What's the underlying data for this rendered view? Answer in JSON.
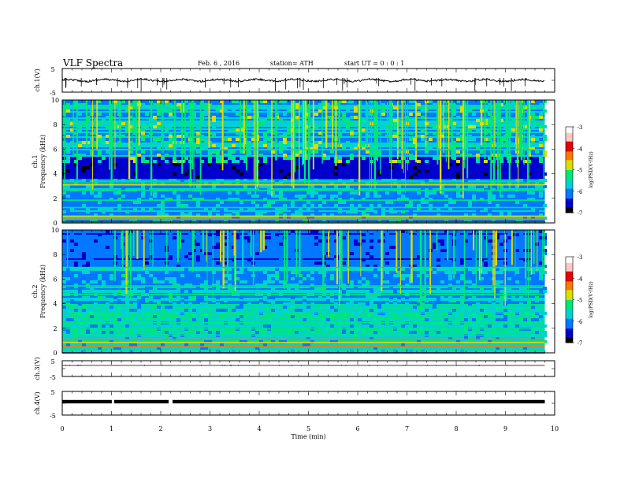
{
  "header": {
    "title": "VLF  Spectra",
    "date": "Feb. 6  , 2016",
    "station": "station= ATH",
    "start": "start  UT =   0 : 0  : 1"
  },
  "chart_data": [
    {
      "type": "line",
      "panel": "ch1-waveform",
      "ylabel": "ch.1(V)",
      "yticks": [
        "5",
        "-5"
      ],
      "ylim": [
        -5,
        5
      ],
      "xlim": [
        0,
        10
      ],
      "level": 0.0,
      "color": "#000000"
    },
    {
      "type": "heatmap",
      "panel": "ch1-spectrogram",
      "ylabel": "Frequency (kHz)",
      "channel_label": "ch.1",
      "ylim": [
        0,
        10
      ],
      "yticks": [
        "0",
        "2",
        "4",
        "6",
        "8",
        "10"
      ],
      "xlim": [
        0,
        9.8
      ],
      "colorbar": {
        "label": "log(PSD(V²/Hz)",
        "range": [
          -7,
          -3
        ],
        "ticks": [
          "-3",
          "-4",
          "-5",
          "-6",
          "-7"
        ]
      }
    },
    {
      "type": "heatmap",
      "panel": "ch2-spectrogram",
      "ylabel": "Frequency (kHz)",
      "channel_label": "ch.2",
      "ylim": [
        0,
        10
      ],
      "yticks": [
        "0",
        "2",
        "4",
        "6",
        "8",
        "10"
      ],
      "xlim": [
        0,
        9.8
      ],
      "colorbar": {
        "label": "log(PSD(V²/Hz)",
        "range": [
          -7,
          -3
        ],
        "ticks": [
          "-3",
          "-4",
          "-5",
          "-6",
          "-7"
        ]
      }
    },
    {
      "type": "line",
      "panel": "ch3-waveform",
      "ylabel": "ch.3(V)",
      "yticks": [
        "5",
        "-5"
      ],
      "ylim": [
        -5,
        5
      ],
      "xlim": [
        0,
        10
      ],
      "level": 0.0,
      "color": "#000000"
    },
    {
      "type": "line",
      "panel": "ch4-waveform",
      "ylabel": "ch.4(V)",
      "yticks": [
        "5",
        "-5"
      ],
      "ylim": [
        -5,
        5
      ],
      "xlim": [
        0,
        10
      ],
      "level": 0.0,
      "gaps_min": [
        1.03,
        2.2
      ],
      "color": "#000000"
    }
  ],
  "x_axis": {
    "label": "Time  (min)",
    "ticks": [
      "0",
      "1",
      "2",
      "3",
      "4",
      "5",
      "6",
      "7",
      "8",
      "9",
      "10"
    ]
  },
  "colormap": [
    "#000000",
    "#0000cc",
    "#0078ff",
    "#00d2d2",
    "#00e678",
    "#dcdc00",
    "#ff7800",
    "#e60000",
    "#ffc8c8",
    "#ffffff"
  ]
}
